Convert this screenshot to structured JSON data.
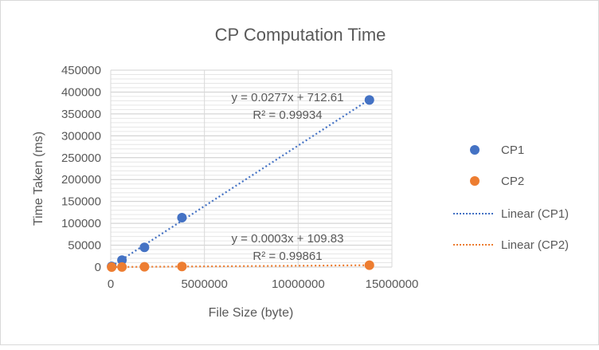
{
  "chart_data": {
    "type": "scatter",
    "title": "CP Computation Time",
    "xlabel": "File Size (byte)",
    "ylabel": "Time Taken (ms)",
    "xlim": [
      0,
      15000000
    ],
    "ylim": [
      0,
      450000
    ],
    "x_ticks": [
      "0",
      "5000000",
      "10000000",
      "15000000"
    ],
    "y_ticks": [
      "0",
      "50000",
      "100000",
      "150000",
      "200000",
      "250000",
      "300000",
      "350000",
      "400000",
      "450000"
    ],
    "grid": true,
    "legend_position": "right",
    "series": [
      {
        "name": "CP1",
        "color": "#4472c4",
        "points": [
          {
            "x": 50000,
            "y": 1500
          },
          {
            "x": 600000,
            "y": 16000
          },
          {
            "x": 1800000,
            "y": 45000
          },
          {
            "x": 3800000,
            "y": 113000
          },
          {
            "x": 13800000,
            "y": 382000
          }
        ],
        "trendline": {
          "name": "Linear  (CP1)",
          "slope": 0.0277,
          "intercept": 712.61,
          "equation": "y = 0.0277x + 712.61",
          "r2": "R² = 0.99934"
        }
      },
      {
        "name": "CP2",
        "color": "#ed7d31",
        "points": [
          {
            "x": 50000,
            "y": 100
          },
          {
            "x": 600000,
            "y": 300
          },
          {
            "x": 1800000,
            "y": 650
          },
          {
            "x": 3800000,
            "y": 1300
          },
          {
            "x": 13800000,
            "y": 4300
          }
        ],
        "trendline": {
          "name": "Linear  (CP2)",
          "slope": 0.0003,
          "intercept": 109.83,
          "equation": "y = 0.0003x + 109.83",
          "r2": "R² = 0.99861"
        }
      }
    ]
  }
}
